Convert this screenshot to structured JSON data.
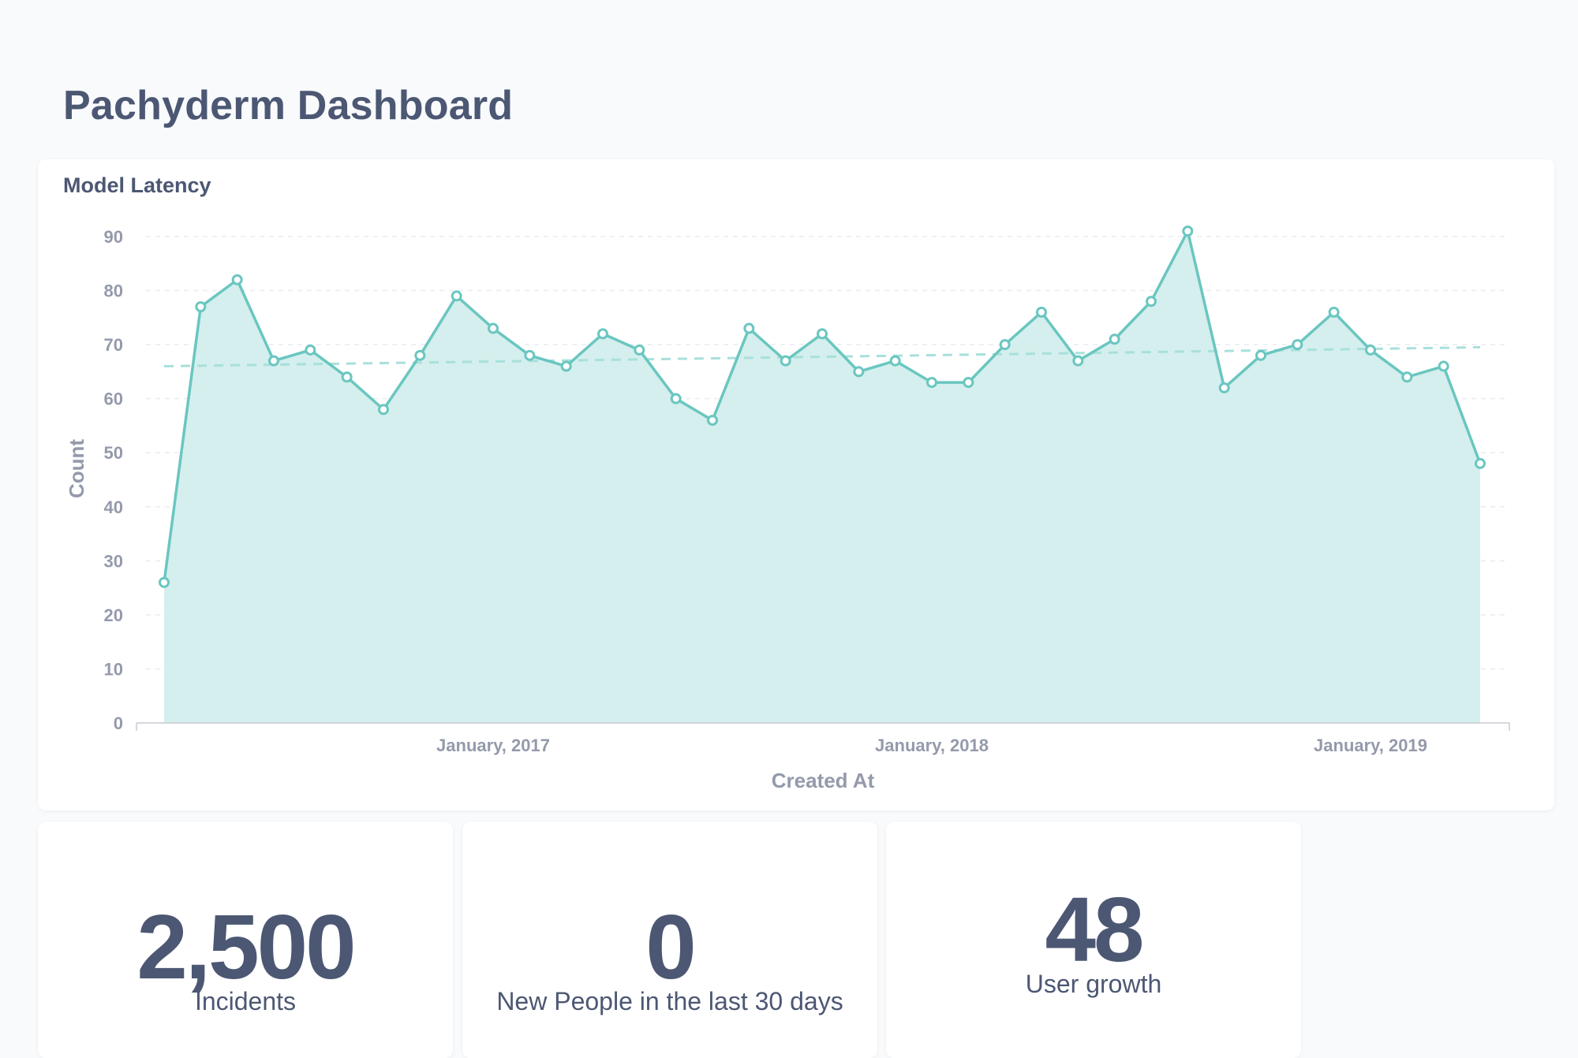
{
  "dashboard": {
    "title": "Pachyderm Dashboard"
  },
  "colors": {
    "series": "#6ac6c0",
    "fill": "#d4efed",
    "trend": "#a8e0db",
    "text": "#4c5773",
    "muted": "#949aab"
  },
  "chart_data": {
    "type": "line",
    "title": "Model Latency",
    "xlabel": "Created At",
    "ylabel": "Count",
    "ylim": [
      0,
      90
    ],
    "yticks": [
      0,
      10,
      20,
      30,
      40,
      50,
      60,
      70,
      80,
      90
    ],
    "x_tick_labels": [
      "January, 2017",
      "January, 2018",
      "January, 2019"
    ],
    "x_tick_index": [
      9,
      21,
      33
    ],
    "grid": true,
    "series": [
      {
        "values": [
          26,
          77,
          82,
          67,
          69,
          64,
          58,
          68,
          79,
          73,
          68,
          66,
          72,
          69,
          60,
          56,
          73,
          67,
          72,
          65,
          67,
          63,
          63,
          70,
          76,
          67,
          71,
          78,
          91,
          62,
          68,
          70,
          76,
          69,
          64,
          66,
          48
        ]
      }
    ],
    "trend": {
      "start": 66,
      "end": 69.5
    }
  },
  "scalars": [
    {
      "value": "2,500",
      "label": "Incidents"
    },
    {
      "value": "0",
      "label": "New People in the last 30 days"
    },
    {
      "value": "48",
      "label": "User growth"
    }
  ]
}
